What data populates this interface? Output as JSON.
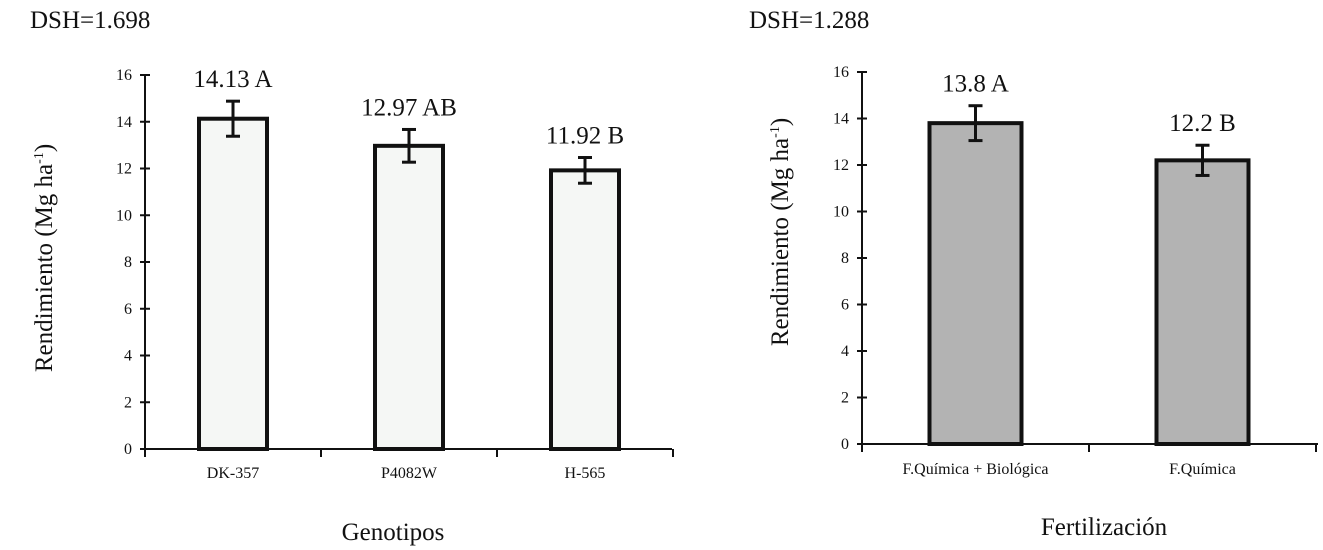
{
  "chart_data": [
    {
      "type": "bar",
      "header": "DSH=1.698",
      "categories": [
        "DK-357",
        "P4082W",
        "H-565"
      ],
      "values": [
        14.13,
        12.97,
        11.92
      ],
      "errors": [
        0.75,
        0.7,
        0.55
      ],
      "value_labels": [
        "14.13 A",
        "12.97 AB",
        "11.92 B"
      ],
      "xlabel": "Genotipos",
      "ylabel_main": "Rendimiento (Mg ha",
      "ylabel_sup": "-1",
      "ylabel_close": ")",
      "ylim": [
        0,
        16
      ],
      "yticks": [
        0,
        2,
        4,
        6,
        8,
        10,
        12,
        14,
        16
      ],
      "bar_color": "#f5f7f5",
      "grid": false,
      "legend": "none"
    },
    {
      "type": "bar",
      "header": "DSH=1.288",
      "categories": [
        "F.Química + Biológica",
        "F.Química"
      ],
      "values": [
        13.8,
        12.2
      ],
      "errors": [
        0.75,
        0.65
      ],
      "value_labels": [
        "13.8 A",
        "12.2 B"
      ],
      "xlabel": "Fertilización",
      "ylabel_main": "Rendimiento (Mg ha",
      "ylabel_sup": "-1",
      "ylabel_close": ")",
      "ylim": [
        0,
        16
      ],
      "yticks": [
        0,
        2,
        4,
        6,
        8,
        10,
        12,
        14,
        16
      ],
      "bar_color": "#b3b3b3",
      "grid": false,
      "legend": "none"
    }
  ]
}
